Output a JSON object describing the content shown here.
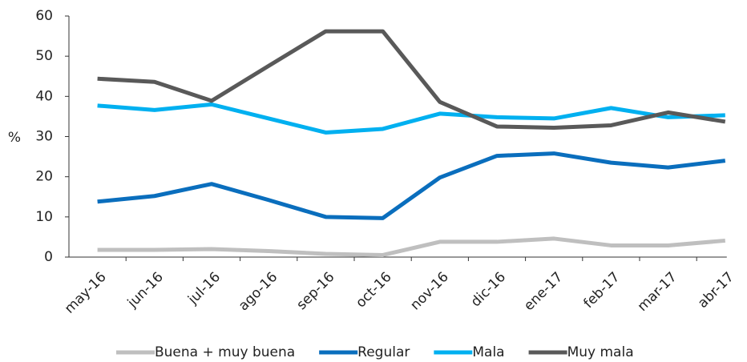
{
  "chart_data": {
    "type": "line",
    "y_label": "%",
    "categories": [
      "may-16",
      "jun-16",
      "jul-16",
      "ago-16",
      "sep-16",
      "oct-16",
      "nov-16",
      "dic-16",
      "ene-17",
      "feb-17",
      "mar-17",
      "abr-17"
    ],
    "series": [
      {
        "name": "Buena + muy buena",
        "color": "#bfbfbf",
        "values": [
          1.8,
          1.8,
          2,
          1.5,
          0.8,
          0.5,
          3.8,
          3.8,
          4.6,
          2.9,
          2.9,
          4.1
        ]
      },
      {
        "name": "Regular",
        "color": "#0a6ebd",
        "values": [
          13.8,
          15.2,
          18.2,
          14.2,
          10,
          9.7,
          19.8,
          25.2,
          25.8,
          23.5,
          22.3,
          24
        ]
      },
      {
        "name": "Mala",
        "color": "#00b0f0",
        "values": [
          37.7,
          36.6,
          38,
          34.5,
          31,
          31.9,
          35.7,
          34.8,
          34.5,
          37.1,
          34.8,
          35.3
        ]
      },
      {
        "name": "Muy mala",
        "color": "#595959",
        "values": [
          44.4,
          43.6,
          38.9,
          47.6,
          56.2,
          56.2,
          38.6,
          32.5,
          32.2,
          32.8,
          36,
          33.7
        ]
      }
    ],
    "ylim": [
      0,
      60
    ],
    "yticks": [
      0,
      10,
      20,
      30,
      40,
      50,
      60
    ],
    "legend": "bottom"
  }
}
